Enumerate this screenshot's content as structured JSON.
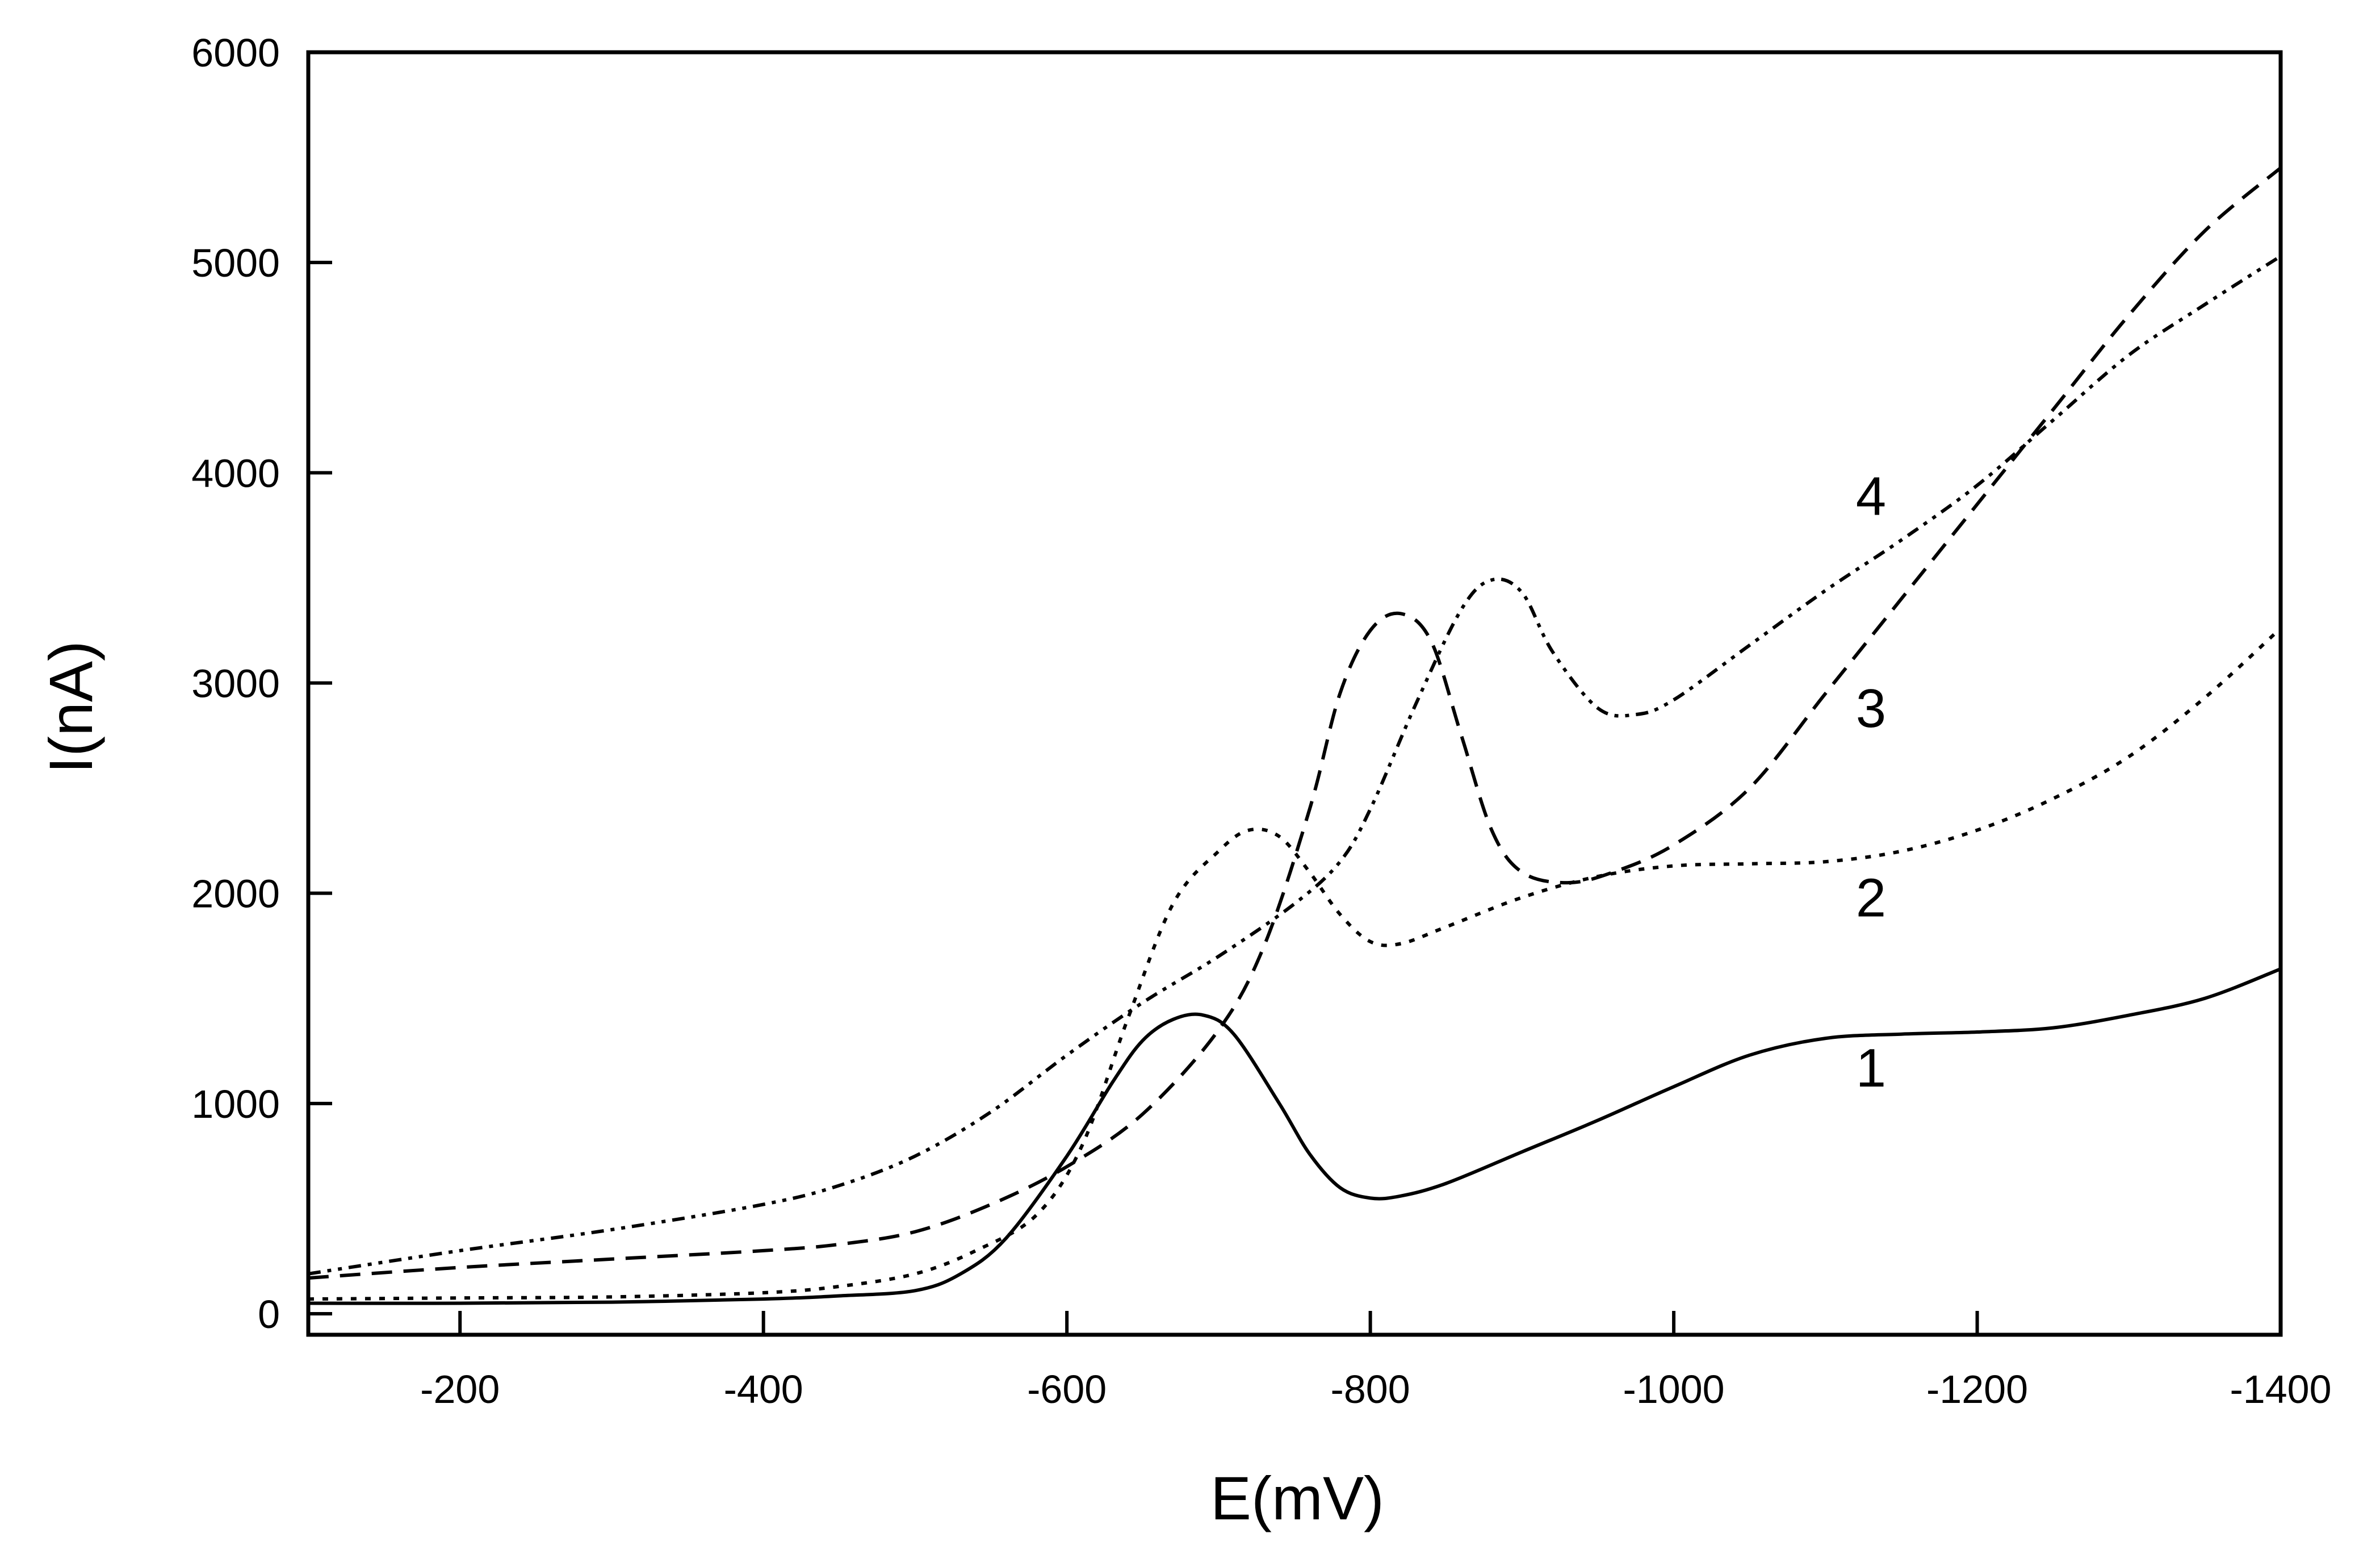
{
  "chart_data": {
    "type": "line",
    "title": "",
    "xlabel": "E(mV)",
    "ylabel": "I(nA)",
    "xlim": [
      -100,
      -1400
    ],
    "ylim": [
      -100,
      6000
    ],
    "x_ticks": [
      -200,
      -400,
      -600,
      -800,
      -1000,
      -1200,
      -1400
    ],
    "x_tick_labels": [
      "-200",
      "-400",
      "-600",
      "-800",
      "-1000",
      "-1200",
      "-1400"
    ],
    "y_ticks": [
      0,
      1000,
      2000,
      3000,
      4000,
      5000,
      6000
    ],
    "y_tick_labels": [
      "0",
      "1000",
      "2000",
      "3000",
      "4000",
      "5000",
      "6000"
    ],
    "grid": false,
    "legend": "inline curve labels",
    "series": [
      {
        "name": "1",
        "label": "1",
        "label_at": [
          -1130,
          1080
        ],
        "style": "solid",
        "x": [
          -100,
          -200,
          -300,
          -400,
          -450,
          -500,
          -530,
          -560,
          -600,
          -630,
          -650,
          -670,
          -690,
          -710,
          -740,
          -760,
          -780,
          -800,
          -820,
          -850,
          -900,
          -950,
          -1000,
          -1050,
          -1100,
          -1150,
          -1200,
          -1250,
          -1300,
          -1350,
          -1400
        ],
        "y": [
          50,
          50,
          55,
          70,
          85,
          110,
          190,
          360,
          750,
          1100,
          1300,
          1400,
          1420,
          1330,
          1000,
          760,
          600,
          550,
          560,
          620,
          770,
          920,
          1080,
          1230,
          1310,
          1330,
          1340,
          1360,
          1420,
          1500,
          1640
        ]
      },
      {
        "name": "2",
        "label": "2",
        "label_at": [
          -1130,
          1890
        ],
        "style": "dotted",
        "x": [
          -100,
          -200,
          -300,
          -400,
          -450,
          -500,
          -540,
          -580,
          -610,
          -640,
          -670,
          -700,
          -720,
          -740,
          -760,
          -780,
          -800,
          -820,
          -850,
          -900,
          -950,
          -1000,
          -1050,
          -1100,
          -1150,
          -1200,
          -1250,
          -1300,
          -1350,
          -1400
        ],
        "y": [
          70,
          75,
          80,
          100,
          130,
          190,
          300,
          470,
          800,
          1400,
          1950,
          2200,
          2300,
          2270,
          2100,
          1900,
          1770,
          1760,
          1840,
          1980,
          2080,
          2130,
          2140,
          2150,
          2200,
          2300,
          2450,
          2650,
          2930,
          3260
        ]
      },
      {
        "name": "3",
        "label": "3",
        "label_at": [
          -1130,
          2790
        ],
        "style": "dashed",
        "x": [
          -100,
          -200,
          -300,
          -400,
          -450,
          -500,
          -550,
          -600,
          -650,
          -700,
          -730,
          -760,
          -780,
          -800,
          -820,
          -840,
          -860,
          -880,
          -900,
          -930,
          -960,
          -1000,
          -1050,
          -1100,
          -1150,
          -1200,
          -1250,
          -1300,
          -1350,
          -1400
        ],
        "y": [
          170,
          220,
          260,
          300,
          330,
          390,
          520,
          700,
          950,
          1350,
          1750,
          2400,
          2950,
          3250,
          3330,
          3200,
          2750,
          2300,
          2100,
          2050,
          2100,
          2230,
          2500,
          2950,
          3400,
          3850,
          4300,
          4750,
          5150,
          5450
        ]
      },
      {
        "name": "4",
        "label": "4",
        "label_at": [
          -1130,
          3800
        ],
        "style": "dash-dot-dot",
        "x": [
          -100,
          -200,
          -300,
          -400,
          -450,
          -500,
          -550,
          -600,
          -650,
          -700,
          -750,
          -780,
          -800,
          -830,
          -860,
          -880,
          -900,
          -920,
          -950,
          -975,
          -1000,
          -1050,
          -1100,
          -1150,
          -1200,
          -1250,
          -1300,
          -1350,
          -1400
        ],
        "y": [
          190,
          300,
          400,
          520,
          610,
          750,
          960,
          1230,
          1480,
          1700,
          1950,
          2150,
          2400,
          2900,
          3350,
          3490,
          3430,
          3150,
          2880,
          2850,
          2920,
          3180,
          3440,
          3680,
          3940,
          4250,
          4560,
          4800,
          5030
        ]
      }
    ]
  }
}
